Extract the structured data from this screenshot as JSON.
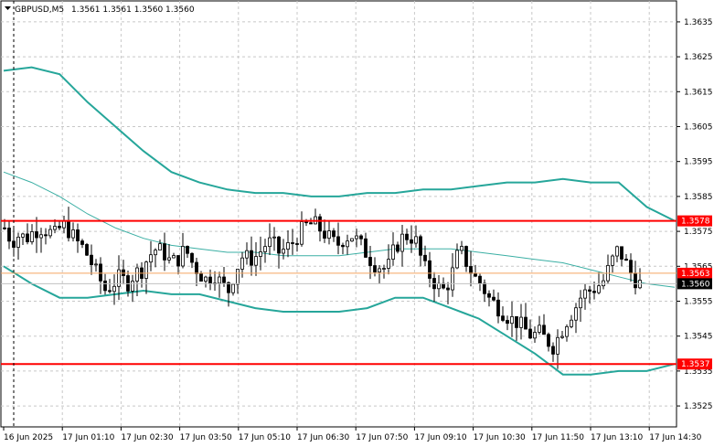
{
  "header": {
    "symbol_timeframe": "GBPUSD,M5",
    "ohlc": "1.3561 1.3561 1.3560 1.3560"
  },
  "colors": {
    "background": "#ffffff",
    "grid": "#c8c8c8",
    "candle": "#000000",
    "band": "#26a69a",
    "middle": "#26a69a",
    "level": "#ff0000",
    "bid_line": "#c0c0c0",
    "ask_line": "#f4a460",
    "tag_red": "#ff0000",
    "tag_current": "#000000"
  },
  "chart_data": {
    "type": "candlestick",
    "title": "GBPUSD,M5",
    "ylim": [
      1.3519,
      1.3641
    ],
    "y_ticks": [
      "1.3635",
      "1.3625",
      "1.3615",
      "1.3605",
      "1.3595",
      "1.3585",
      "1.3575",
      "1.3565",
      "1.3555",
      "1.3545",
      "1.3535",
      "1.3525"
    ],
    "x_labels": [
      "16 Jun 2025",
      "17 Jun 01:10",
      "17 Jun 02:30",
      "17 Jun 03:50",
      "17 Jun 05:10",
      "17 Jun 06:30",
      "17 Jun 07:50",
      "17 Jun 09:10",
      "17 Jun 10:30",
      "17 Jun 11:50",
      "17 Jun 13:10",
      "17 Jun 14:30"
    ],
    "grid": true,
    "levels": [
      {
        "value": 1.3578,
        "label": "1.3578"
      },
      {
        "value": 1.3537,
        "label": "1.3537"
      }
    ],
    "price_tags": [
      {
        "value": 1.3563,
        "label": "1.3563"
      },
      {
        "value": 1.356,
        "label": "1.3560"
      }
    ],
    "bid_price": 1.356,
    "ask_price": 1.3563,
    "close_trend": [
      1.3576,
      1.3572,
      1.3574,
      1.3573,
      1.3575,
      1.3576,
      1.3575,
      1.3574,
      1.3577,
      1.3575,
      1.3572,
      1.357,
      1.3566,
      1.3562,
      1.3558,
      1.356,
      1.3562,
      1.356,
      1.3563,
      1.3564,
      1.3568,
      1.357,
      1.3569,
      1.3566,
      1.3567,
      1.357,
      1.3566,
      1.3563,
      1.3561,
      1.3563,
      1.356,
      1.3558,
      1.3564,
      1.3568,
      1.3567,
      1.3568,
      1.3571,
      1.3572,
      1.3569,
      1.357,
      1.3572,
      1.3575,
      1.3577,
      1.3577,
      1.3575,
      1.3573,
      1.3571,
      1.3573,
      1.3574,
      1.3572,
      1.3569,
      1.3566,
      1.3565,
      1.3564,
      1.357,
      1.3573,
      1.3574,
      1.3572,
      1.3565,
      1.3562,
      1.3559,
      1.3558,
      1.3563,
      1.357,
      1.3566,
      1.3562,
      1.356,
      1.3556,
      1.3554,
      1.3552,
      1.355,
      1.3549,
      1.3547,
      1.3545,
      1.3546,
      1.3544,
      1.3542,
      1.3546,
      1.355,
      1.3553,
      1.3557,
      1.3558,
      1.3559,
      1.3561,
      1.3566,
      1.357,
      1.3566,
      1.3562,
      1.356
    ],
    "series": [
      {
        "name": "upper_band",
        "values": [
          1.3621,
          1.3622,
          1.362,
          1.3612,
          1.3605,
          1.3598,
          1.3592,
          1.3589,
          1.3587,
          1.3586,
          1.3586,
          1.3585,
          1.3585,
          1.3586,
          1.3586,
          1.3587,
          1.3587,
          1.3588,
          1.3589,
          1.3589,
          1.359,
          1.3589,
          1.3589,
          1.3582,
          1.3578
        ]
      },
      {
        "name": "middle_band",
        "values": [
          1.3592,
          1.3589,
          1.3585,
          1.358,
          1.3576,
          1.3573,
          1.3571,
          1.357,
          1.3569,
          1.3569,
          1.3568,
          1.3568,
          1.3568,
          1.3569,
          1.357,
          1.357,
          1.357,
          1.3569,
          1.3568,
          1.3567,
          1.3566,
          1.3564,
          1.3562,
          1.356,
          1.3559
        ]
      },
      {
        "name": "lower_band",
        "values": [
          1.3565,
          1.356,
          1.3556,
          1.3556,
          1.3557,
          1.3558,
          1.3557,
          1.3557,
          1.3555,
          1.3553,
          1.3552,
          1.3552,
          1.3552,
          1.3553,
          1.3556,
          1.3556,
          1.3553,
          1.355,
          1.3545,
          1.354,
          1.3534,
          1.3534,
          1.3535,
          1.3535,
          1.3537
        ]
      }
    ]
  }
}
